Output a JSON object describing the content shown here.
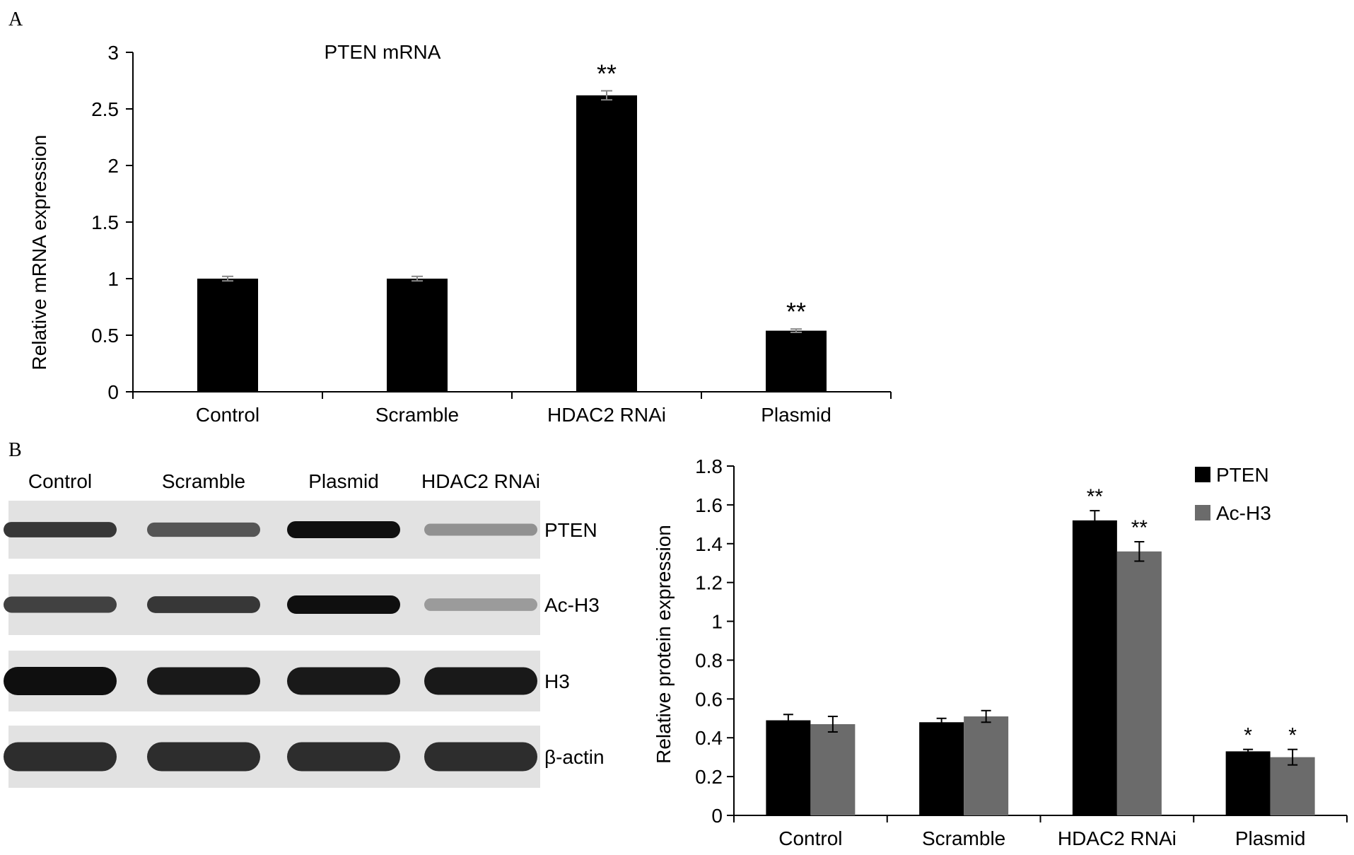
{
  "panels": {
    "a": "A",
    "b": "B"
  },
  "chart_data": [
    {
      "type": "bar",
      "title": "PTEN mRNA",
      "xlabel": "",
      "ylabel": "Relative mRNA expression",
      "categories": [
        "Control",
        "Scramble",
        "HDAC2 RNAi",
        "Plasmid"
      ],
      "values": [
        1.0,
        1.0,
        2.62,
        0.54
      ],
      "errors": [
        0.02,
        0.02,
        0.04,
        0.015
      ],
      "annotations": [
        "",
        "",
        "**",
        "**"
      ],
      "ylim": [
        0,
        3
      ],
      "yticks": [
        0,
        0.5,
        1,
        1.5,
        2,
        2.5,
        3
      ],
      "ytick_labels": [
        "0",
        "0.5",
        "1",
        "1.5",
        "2",
        "2.5",
        "3"
      ],
      "grid": false,
      "color": "#000000"
    },
    {
      "type": "bar",
      "title": "",
      "xlabel": "",
      "ylabel": "Relative protein expression",
      "categories": [
        "Control",
        "Scramble",
        "HDAC2 RNAi",
        "Plasmid"
      ],
      "series": [
        {
          "name": "PTEN",
          "color": "#000000",
          "values": [
            0.49,
            0.48,
            1.52,
            0.33
          ],
          "errors": [
            0.03,
            0.02,
            0.05,
            0.01
          ],
          "annotations": [
            "",
            "",
            "**",
            "*"
          ]
        },
        {
          "name": "Ac-H3",
          "color": "#6b6b6b",
          "values": [
            0.47,
            0.51,
            1.36,
            0.3
          ],
          "errors": [
            0.04,
            0.03,
            0.05,
            0.04
          ],
          "annotations": [
            "",
            "",
            "**",
            "*"
          ]
        }
      ],
      "ylim": [
        0,
        1.8
      ],
      "yticks": [
        0,
        0.2,
        0.4,
        0.6,
        0.8,
        1,
        1.2,
        1.4,
        1.6,
        1.8
      ],
      "ytick_labels": [
        "0",
        "0.2",
        "0.4",
        "0.6",
        "0.8",
        "1",
        "1.2",
        "1.4",
        "1.6",
        "1.8"
      ],
      "legend_position": "top-right",
      "grid": false
    }
  ],
  "blot": {
    "lane_labels": [
      "Control",
      "Scramble",
      "Plasmid",
      "HDAC2 RNAi"
    ],
    "rows": [
      {
        "label": "PTEN",
        "intensities": [
          0.8,
          0.65,
          1.0,
          0.35
        ]
      },
      {
        "label": "Ac-H3",
        "intensities": [
          0.75,
          0.8,
          1.0,
          0.3
        ]
      },
      {
        "label": "H3",
        "intensities": [
          1.0,
          0.95,
          0.95,
          0.95
        ]
      },
      {
        "label": "β-actin",
        "intensities": [
          0.85,
          0.85,
          0.85,
          0.85
        ]
      }
    ]
  }
}
